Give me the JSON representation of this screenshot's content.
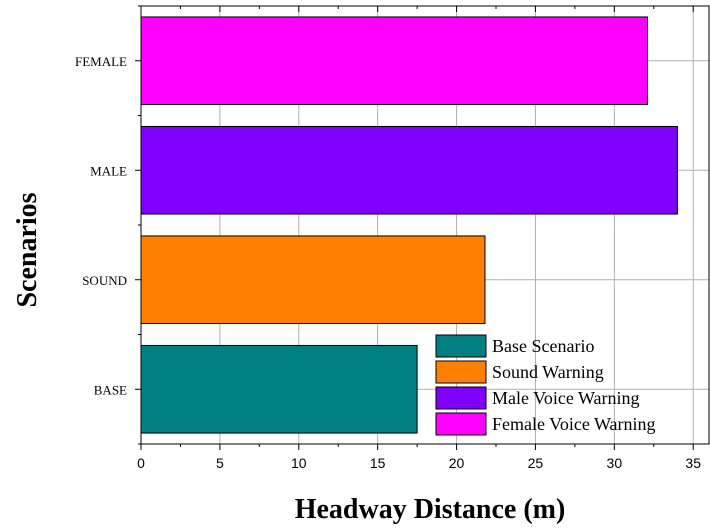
{
  "chart_data": {
    "type": "bar",
    "orientation": "horizontal",
    "categories": [
      "BASE",
      "SOUND",
      "MALE",
      "FEMALE"
    ],
    "values": [
      17.5,
      21.8,
      34.0,
      32.1
    ],
    "colors": [
      "#008080",
      "#ff8000",
      "#8000ff",
      "#ff00ff"
    ],
    "xlabel": "Headway Distance  (m)",
    "ylabel": "Scenarios",
    "xlim": [
      0,
      36
    ],
    "xticks": [
      0,
      5,
      10,
      15,
      20,
      25,
      30,
      35
    ],
    "grid": true,
    "legend": {
      "position": "bottom-right",
      "entries": [
        {
          "label": "Base Scenario",
          "color": "#008080"
        },
        {
          "label": "Sound Warning",
          "color": "#ff8000"
        },
        {
          "label": "Male Voice Warning",
          "color": "#8000ff"
        },
        {
          "label": "Female Voice Warning",
          "color": "#ff00ff"
        }
      ]
    }
  }
}
